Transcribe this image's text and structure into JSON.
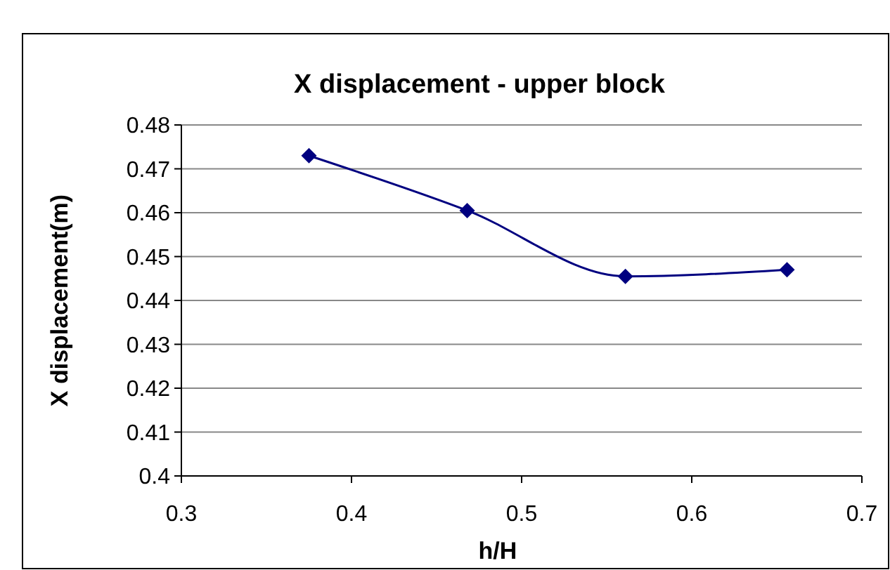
{
  "chart_data": {
    "type": "line",
    "title": "X displacement - upper block",
    "xlabel": "h/H",
    "ylabel": "X displacement(m)",
    "x": [
      0.375,
      0.468,
      0.561,
      0.656
    ],
    "series": [
      {
        "color": "#000080",
        "values": [
          0.473,
          0.4605,
          0.4455,
          0.447
        ]
      }
    ],
    "xlim": [
      0.3,
      0.7
    ],
    "xticks": [
      0.3,
      0.4,
      0.5,
      0.6,
      0.7
    ],
    "ylim": [
      0.4,
      0.48
    ],
    "yticks": [
      0.4,
      0.41,
      0.42,
      0.43,
      0.44,
      0.45,
      0.46,
      0.47,
      0.48
    ],
    "grid": "y",
    "marker": "diamond",
    "line_style": "solid"
  }
}
